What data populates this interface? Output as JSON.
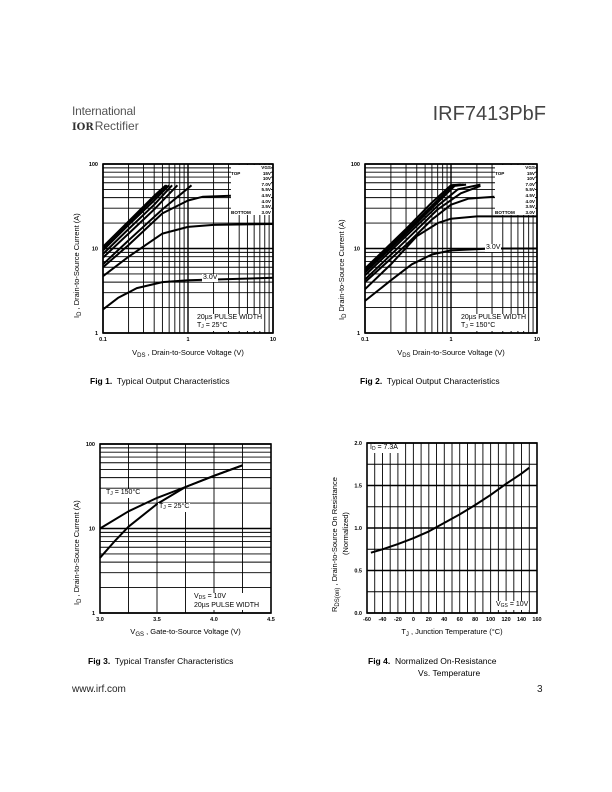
{
  "header": {
    "company_line1": "International",
    "company_logo": "IOR",
    "company_line2": "Rectifier",
    "part_number": "IRF7413PbF"
  },
  "footer": {
    "url": "www.irf.com",
    "page": "3"
  },
  "figures": [
    {
      "label": "Fig 1.",
      "caption": "Typical Output Characteristics"
    },
    {
      "label": "Fig 2.",
      "caption": "Typical Output Characteristics"
    },
    {
      "label": "Fig 3.",
      "caption": "Typical Transfer Characteristics"
    },
    {
      "label": "Fig 4.",
      "caption_line1": "Normalized On-Resistance",
      "caption_line2": "Vs. Temperature"
    }
  ],
  "chart_data": [
    {
      "type": "line",
      "title": "Typical Output Characteristics",
      "xlabel": {
        "sym": "V",
        "sub": "DS",
        "rest": " , Drain-to-Source Voltage (V)"
      },
      "ylabel": {
        "sym": "I",
        "sub": "D",
        "rest": " , Drain-to-Source Current (A)"
      },
      "xscale": "log",
      "yscale": "log",
      "xlim": [
        0.1,
        10
      ],
      "ylim": [
        1,
        100
      ],
      "xticks": [
        {
          "v": 0.1,
          "t": "0.1"
        },
        {
          "v": 1,
          "t": "1"
        },
        {
          "v": 10,
          "t": "10"
        }
      ],
      "yticks": [
        {
          "v": 1,
          "t": "1"
        },
        {
          "v": 10,
          "t": "10"
        },
        {
          "v": 100,
          "t": "100"
        }
      ],
      "grid": true,
      "legend": {
        "placement": "top-right",
        "header": "VGS",
        "top_label": "TOP",
        "bottom_label": "BOTTOM",
        "entries": [
          "15V",
          "10V",
          "7.0V",
          "5.5V",
          "4.5V",
          "4.0V",
          "3.5V",
          "3.0V"
        ]
      },
      "annotations": {
        "curve_label": "3.0V",
        "pulse": "20µs PULSE WIDTH",
        "temp_sym": "T",
        "temp_sub": "J",
        "temp_rest": " = 25°C"
      },
      "series": [
        {
          "name": "15V",
          "points": [
            [
              0.1,
              10.5
            ],
            [
              0.2,
              21
            ],
            [
              0.4,
              42
            ],
            [
              0.55,
              56
            ]
          ]
        },
        {
          "name": "10V",
          "points": [
            [
              0.1,
              10
            ],
            [
              0.2,
              20
            ],
            [
              0.4,
              40
            ],
            [
              0.57,
              56
            ]
          ]
        },
        {
          "name": "7.0V",
          "points": [
            [
              0.1,
              9.5
            ],
            [
              0.2,
              19
            ],
            [
              0.4,
              37
            ],
            [
              0.6,
              56
            ]
          ]
        },
        {
          "name": "5.5V",
          "points": [
            [
              0.1,
              8.6
            ],
            [
              0.2,
              17
            ],
            [
              0.4,
              33
            ],
            [
              0.65,
              56
            ]
          ]
        },
        {
          "name": "4.5V",
          "points": [
            [
              0.1,
              7.8
            ],
            [
              0.2,
              15
            ],
            [
              0.4,
              29
            ],
            [
              0.75,
              56
            ]
          ]
        },
        {
          "name": "4.0V",
          "points": [
            [
              0.1,
              6.5
            ],
            [
              0.2,
              12.5
            ],
            [
              0.5,
              29
            ],
            [
              1.1,
              56
            ]
          ]
        },
        {
          "name": "3.5V",
          "points": [
            [
              0.1,
              6
            ],
            [
              0.2,
              11
            ],
            [
              0.5,
              26
            ],
            [
              1,
              37
            ],
            [
              1.5,
              41
            ],
            [
              3.2,
              42
            ]
          ]
        },
        {
          "name": "3.0V",
          "points": [
            [
              0.1,
              4.7
            ],
            [
              0.2,
              8
            ],
            [
              0.5,
              15
            ],
            [
              1,
              18
            ],
            [
              2,
              19
            ],
            [
              10,
              19.5
            ]
          ]
        },
        {
          "name": "3.0V-low",
          "points": [
            [
              0.1,
              1.9
            ],
            [
              0.15,
              2.6
            ],
            [
              0.25,
              3.4
            ],
            [
              0.5,
              4
            ],
            [
              1,
              4.2
            ],
            [
              10,
              4.5
            ]
          ]
        }
      ]
    },
    {
      "type": "line",
      "title": "Typical Output Characteristics",
      "xlabel": {
        "sym": "V",
        "sub": "DS",
        "rest": " Drain-to-Source Voltage (V)"
      },
      "ylabel": {
        "sym": "I",
        "sub": "D",
        "rest": " Drain-to-Source Current (A)"
      },
      "xscale": "log",
      "yscale": "log",
      "xlim": [
        0.1,
        10
      ],
      "ylim": [
        1,
        100
      ],
      "xticks": [
        {
          "v": 0.1,
          "t": "0.1"
        },
        {
          "v": 1,
          "t": "1"
        },
        {
          "v": 10,
          "t": "10"
        }
      ],
      "yticks": [
        {
          "v": 1,
          "t": "1"
        },
        {
          "v": 10,
          "t": "10"
        },
        {
          "v": 100,
          "t": "100"
        }
      ],
      "grid": true,
      "legend": {
        "placement": "top-right",
        "header": "VGS",
        "top_label": "TOP",
        "bottom_label": "BOTTOM",
        "entries": [
          "15V",
          "10V",
          "7.0V",
          "5.5V",
          "4.5V",
          "4.0V",
          "3.5V",
          "3.0V"
        ]
      },
      "annotations": {
        "curve_label": "3.0V",
        "pulse": "20µs PULSE WIDTH",
        "temp_sym": "T",
        "temp_sub": "J",
        "temp_rest": " = 150°C"
      },
      "series": [
        {
          "name": "15V",
          "points": [
            [
              0.1,
              5.8
            ],
            [
              0.3,
              17
            ],
            [
              0.6,
              35
            ],
            [
              1,
              56
            ],
            [
              1.3,
              57
            ]
          ]
        },
        {
          "name": "10V",
          "points": [
            [
              0.1,
              5.5
            ],
            [
              0.3,
              16
            ],
            [
              0.6,
              32
            ],
            [
              1.05,
              56
            ],
            [
              1.4,
              57
            ]
          ]
        },
        {
          "name": "7.0V",
          "points": [
            [
              0.1,
              5.2
            ],
            [
              0.3,
              15
            ],
            [
              0.6,
              30
            ],
            [
              1.1,
              55
            ],
            [
              1.5,
              57
            ]
          ]
        },
        {
          "name": "5.5V",
          "points": [
            [
              0.1,
              4.8
            ],
            [
              0.3,
              14
            ],
            [
              0.7,
              32
            ],
            [
              1.2,
              50
            ],
            [
              2.2,
              57
            ]
          ]
        },
        {
          "name": "4.5V",
          "points": [
            [
              0.1,
              4.3
            ],
            [
              0.3,
              12.5
            ],
            [
              0.7,
              29
            ],
            [
              1.3,
              45
            ],
            [
              2.2,
              55
            ]
          ]
        },
        {
          "name": "4.0V",
          "points": [
            [
              0.1,
              4
            ],
            [
              0.3,
              11
            ],
            [
              0.6,
              22
            ],
            [
              1,
              33
            ],
            [
              1.6,
              39
            ],
            [
              3.2,
              41
            ]
          ]
        },
        {
          "name": "3.5V",
          "points": [
            [
              0.1,
              3.3
            ],
            [
              0.2,
              6.5
            ],
            [
              0.4,
              14
            ],
            [
              0.7,
              20
            ],
            [
              1,
              22.5
            ],
            [
              2,
              24
            ],
            [
              10,
              24
            ]
          ]
        },
        {
          "name": "3.0V",
          "points": [
            [
              0.1,
              2.4
            ],
            [
              0.2,
              4.2
            ],
            [
              0.35,
              6.5
            ],
            [
              0.6,
              8.5
            ],
            [
              1,
              9.5
            ],
            [
              3,
              10
            ],
            [
              10,
              10
            ]
          ]
        }
      ]
    },
    {
      "type": "line",
      "title": "Typical Transfer Characteristics",
      "xlabel": {
        "sym": "V",
        "sub": "GS",
        "rest": " , Gate-to-Source Voltage (V)"
      },
      "ylabel": {
        "sym": "I",
        "sub": "D",
        "rest": " , Drain-to-Source Current (A)"
      },
      "xscale": "linear",
      "yscale": "log",
      "xlim": [
        3.0,
        4.5
      ],
      "ylim": [
        1,
        100
      ],
      "xticks": [
        {
          "v": 3.0,
          "t": "3.0"
        },
        {
          "v": 3.5,
          "t": "3.5"
        },
        {
          "v": 4.0,
          "t": "4.0"
        },
        {
          "v": 4.5,
          "t": "4.5"
        }
      ],
      "yticks": [
        {
          "v": 1,
          "t": "1"
        },
        {
          "v": 10,
          "t": "10"
        },
        {
          "v": 100,
          "t": "100"
        }
      ],
      "xgrid_step": 0.25,
      "grid": true,
      "annotations": {
        "t150_sym": "T",
        "t150_sub": "J",
        "t150_rest": " = 150°C",
        "t25_sym": "T",
        "t25_sub": "J",
        "t25_rest": " = 25°C",
        "vds_sym": "V",
        "vds_sub": "DS",
        "vds_rest": " = 10V",
        "pulse": "20µs PULSE WIDTH"
      },
      "series": [
        {
          "name": "TJ = 150°C",
          "points": [
            [
              3.0,
              10
            ],
            [
              3.25,
              16
            ],
            [
              3.5,
              23
            ],
            [
              3.75,
              31
            ],
            [
              4.0,
              42
            ],
            [
              4.25,
              56
            ]
          ]
        },
        {
          "name": "TJ = 25°C",
          "points": [
            [
              3.0,
              4.5
            ],
            [
              3.125,
              7
            ],
            [
              3.25,
              10.5
            ],
            [
              3.5,
              19.5
            ],
            [
              3.75,
              31
            ],
            [
              4.0,
              42
            ],
            [
              4.25,
              56
            ]
          ]
        }
      ]
    },
    {
      "type": "line",
      "title": "Normalized On-Resistance Vs. Temperature",
      "xlabel": {
        "sym": "T",
        "sub": "J",
        "rest": " , Junction Temperature (°C)"
      },
      "ylabel": {
        "sym": "R",
        "sub": "DS(on)",
        "rest": " ,   Drain-to-Source On Resistance",
        "line2": "(Normalized)"
      },
      "xscale": "linear",
      "yscale": "linear",
      "xlim": [
        -60,
        160
      ],
      "ylim": [
        0,
        2.0
      ],
      "xticks": [
        {
          "v": -60,
          "t": "-60"
        },
        {
          "v": -40,
          "t": "-40"
        },
        {
          "v": -20,
          "t": "-20"
        },
        {
          "v": 0,
          "t": "0"
        },
        {
          "v": 20,
          "t": "20"
        },
        {
          "v": 40,
          "t": "40"
        },
        {
          "v": 60,
          "t": "60"
        },
        {
          "v": 80,
          "t": "80"
        },
        {
          "v": 100,
          "t": "100"
        },
        {
          "v": 120,
          "t": "120"
        },
        {
          "v": 140,
          "t": "140"
        },
        {
          "v": 160,
          "t": "160"
        }
      ],
      "yticks": [
        {
          "v": 0,
          "t": "0.0"
        },
        {
          "v": 0.5,
          "t": "0.5"
        },
        {
          "v": 1.0,
          "t": "1.0"
        },
        {
          "v": 1.5,
          "t": "1.5"
        },
        {
          "v": 2.0,
          "t": "2.0"
        }
      ],
      "xgrid_step": 10,
      "ygrid_step": 0.25,
      "grid": true,
      "annotations": {
        "id_sym": "I",
        "id_sub": "D",
        "id_rest": " = 7.3A",
        "vgs_sym": "V",
        "vgs_sub": "GS",
        "vgs_rest": " = 10V"
      },
      "series": [
        {
          "name": "RDS(on)",
          "points": [
            [
              -55,
              0.71
            ],
            [
              -40,
              0.75
            ],
            [
              -20,
              0.81
            ],
            [
              0,
              0.88
            ],
            [
              20,
              0.96
            ],
            [
              40,
              1.06
            ],
            [
              60,
              1.16
            ],
            [
              80,
              1.27
            ],
            [
              100,
              1.39
            ],
            [
              120,
              1.52
            ],
            [
              140,
              1.64
            ],
            [
              150,
              1.71
            ]
          ]
        }
      ]
    }
  ]
}
